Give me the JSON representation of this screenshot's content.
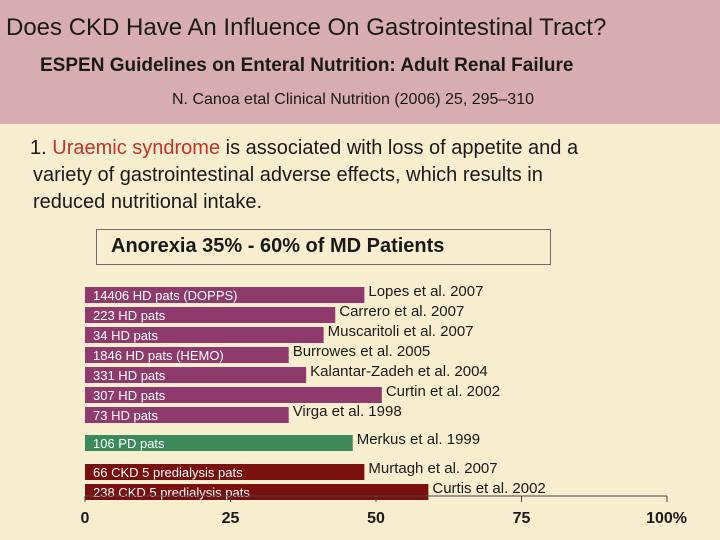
{
  "slide": {
    "title": "Does CKD Have An Influence On Gastrointestinal Tract?",
    "subtitle": "ESPEN Guidelines on Enteral Nutrition: Adult Renal Failure",
    "citation": "N. Canoa etal Clinical Nutrition (2006) 25, 295–310",
    "bullet": {
      "number": "1.",
      "highlight": "Uraemic syndrome",
      "rest_line1": "is associated with loss of appetite and a",
      "line2": "variety of gastrointestinal adverse effects, which results in",
      "line3": "reduced nutritional intake."
    }
  },
  "chart_data": {
    "type": "bar",
    "orientation": "horizontal",
    "title": "Anorexia 35% - 60% of MD Patients",
    "xlim": [
      0,
      100
    ],
    "xticks": [
      "0",
      "25",
      "50",
      "75",
      "100%"
    ],
    "colors": {
      "HD": "#8e3a6c",
      "PD": "#3c8a5a",
      "CKD": "#7a0f0f"
    },
    "bars": [
      {
        "label": "14406 HD pats (DOPPS)",
        "value": 48,
        "source": "Lopes et al. 2007",
        "group": "HD"
      },
      {
        "label": "223 HD pats",
        "value": 43,
        "source": "Carrero et al. 2007",
        "group": "HD"
      },
      {
        "label": "34 HD pats",
        "value": 41,
        "source": "Muscaritoli et al. 2007",
        "group": "HD"
      },
      {
        "label": "1846 HD pats (HEMO)",
        "value": 35,
        "source": "Burrowes et al. 2005",
        "group": "HD"
      },
      {
        "label": "331 HD pats",
        "value": 38,
        "source": "Kalantar-Zadeh et al. 2004",
        "group": "HD"
      },
      {
        "label": "307 HD pats",
        "value": 51,
        "source": "Curtin et al. 2002",
        "group": "HD"
      },
      {
        "label": "73 HD pats",
        "value": 35,
        "source": "Virga et al. 1998",
        "group": "HD"
      },
      {
        "label": "106 PD pats",
        "value": 46,
        "source": "Merkus et al. 1999",
        "group": "PD"
      },
      {
        "label": "66 CKD 5 predialysis pats",
        "value": 48,
        "source": "Murtagh et al. 2007",
        "group": "CKD"
      },
      {
        "label": "238 CKD 5 predialysis pats",
        "value": 59,
        "source": "Curtis et al. 2002",
        "group": "CKD"
      }
    ]
  }
}
